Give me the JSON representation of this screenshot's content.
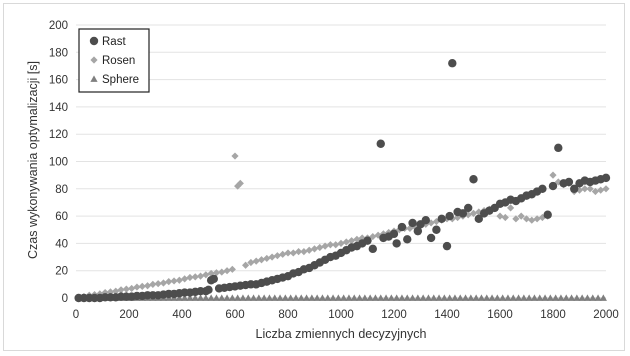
{
  "chart_data": {
    "type": "scatter",
    "xlabel": "Liczba zmiennych decyzyjnych",
    "ylabel": "Czas wykonywania optymalizacji [s]",
    "xlim": [
      0,
      2000
    ],
    "ylim": [
      0,
      200
    ],
    "x_ticks": [
      "0",
      "200",
      "400",
      "600",
      "800",
      "1000",
      "1200",
      "1400",
      "1600",
      "1800",
      "2000"
    ],
    "y_ticks": [
      "0",
      "20",
      "40",
      "60",
      "80",
      "100",
      "120",
      "140",
      "160",
      "180",
      "200"
    ],
    "grid": "horizontal",
    "legend": {
      "placement": "top-left",
      "box": true
    },
    "series": [
      {
        "name": "Rast",
        "marker": "circle",
        "color": "#4d4d4d",
        "x": [
          10,
          30,
          50,
          70,
          90,
          110,
          130,
          150,
          170,
          190,
          210,
          230,
          250,
          270,
          290,
          310,
          330,
          350,
          370,
          390,
          410,
          430,
          450,
          470,
          490,
          500,
          510,
          520,
          540,
          560,
          580,
          600,
          620,
          640,
          660,
          680,
          700,
          720,
          740,
          760,
          780,
          800,
          820,
          840,
          860,
          880,
          900,
          920,
          940,
          960,
          980,
          1000,
          1020,
          1040,
          1060,
          1080,
          1100,
          1150,
          1120,
          1160,
          1180,
          1200,
          1210,
          1230,
          1250,
          1270,
          1290,
          1300,
          1320,
          1340,
          1360,
          1380,
          1400,
          1410,
          1420,
          1440,
          1460,
          1480,
          1500,
          1520,
          1540,
          1560,
          1580,
          1600,
          1620,
          1640,
          1660,
          1680,
          1700,
          1720,
          1740,
          1760,
          1780,
          1800,
          1820,
          1840,
          1860,
          1880,
          1900,
          1920,
          1940,
          1960,
          1980,
          2000
        ],
        "y": [
          0,
          0,
          0,
          0,
          0,
          0.5,
          0.5,
          0.5,
          1,
          1,
          1,
          1.5,
          1.5,
          2,
          2,
          2,
          2.5,
          3,
          3,
          3.5,
          4,
          4,
          4.5,
          5,
          5,
          6,
          13,
          14,
          7,
          7.5,
          8,
          8.5,
          9,
          9.5,
          10,
          10,
          11,
          12,
          13,
          14,
          15,
          16,
          18,
          19,
          21,
          22,
          24,
          26,
          28,
          30,
          31,
          33,
          35,
          37,
          38,
          40,
          42,
          113,
          36,
          44,
          45,
          47,
          40,
          52,
          43,
          55,
          49,
          54,
          57,
          44,
          50,
          58,
          38,
          60,
          172,
          63,
          62,
          66,
          87,
          58,
          62,
          64,
          66,
          69,
          70,
          72,
          71,
          73,
          75,
          76,
          78,
          80,
          61,
          82,
          110,
          84,
          85,
          80,
          84,
          86,
          85,
          86,
          87,
          88
        ]
      },
      {
        "name": "Rosen",
        "marker": "diamond",
        "color": "#a6a6a6",
        "x": [
          10,
          30,
          50,
          70,
          90,
          110,
          130,
          150,
          170,
          190,
          210,
          230,
          250,
          270,
          290,
          310,
          330,
          350,
          370,
          390,
          410,
          430,
          450,
          470,
          490,
          510,
          530,
          550,
          570,
          590,
          600,
          610,
          620,
          640,
          660,
          680,
          700,
          720,
          740,
          760,
          780,
          800,
          820,
          840,
          860,
          880,
          900,
          920,
          940,
          960,
          980,
          1000,
          1020,
          1040,
          1060,
          1080,
          1100,
          1120,
          1140,
          1160,
          1180,
          1200,
          1220,
          1240,
          1260,
          1280,
          1300,
          1320,
          1340,
          1360,
          1380,
          1400,
          1420,
          1440,
          1460,
          1480,
          1500,
          1520,
          1540,
          1560,
          1580,
          1600,
          1620,
          1640,
          1660,
          1680,
          1700,
          1720,
          1740,
          1760,
          1780,
          1800,
          1820,
          1840,
          1860,
          1880,
          1900,
          1920,
          1940,
          1960,
          1980,
          2000
        ],
        "y": [
          0.5,
          1,
          2,
          2.5,
          3,
          4,
          4.5,
          5,
          6,
          6.5,
          7,
          8,
          8.5,
          9,
          10,
          10.5,
          11,
          12,
          12.5,
          13,
          14,
          15,
          15.5,
          16,
          17,
          18,
          18.5,
          19,
          20,
          21,
          104,
          82,
          84,
          24,
          26,
          27,
          28,
          29,
          30,
          31,
          32,
          33,
          33,
          34,
          34,
          35,
          36,
          37,
          38,
          39,
          39,
          40,
          41,
          42,
          43,
          44,
          44,
          45,
          46,
          47,
          48,
          49,
          50,
          51,
          51,
          52,
          53,
          54,
          55,
          56,
          57,
          58,
          58,
          59,
          60,
          61,
          62,
          63,
          64,
          65,
          66,
          60,
          59,
          66,
          58,
          60,
          58,
          57,
          58,
          59,
          60,
          90,
          85,
          83,
          84,
          78,
          79,
          80,
          80,
          78,
          79,
          80
        ]
      },
      {
        "name": "Sphere",
        "marker": "triangle",
        "color": "#7f7f7f",
        "x": [
          10,
          30,
          50,
          70,
          90,
          110,
          130,
          150,
          170,
          190,
          210,
          230,
          250,
          270,
          290,
          310,
          330,
          350,
          370,
          390,
          410,
          430,
          450,
          470,
          490,
          510,
          530,
          550,
          570,
          590,
          610,
          630,
          650,
          670,
          690,
          710,
          730,
          750,
          770,
          790,
          810,
          830,
          850,
          870,
          890,
          910,
          930,
          950,
          970,
          990,
          1010,
          1030,
          1050,
          1070,
          1090,
          1110,
          1130,
          1150,
          1170,
          1190,
          1210,
          1230,
          1250,
          1270,
          1290,
          1310,
          1330,
          1350,
          1370,
          1390,
          1410,
          1430,
          1450,
          1470,
          1490,
          1510,
          1530,
          1550,
          1570,
          1590,
          1610,
          1630,
          1650,
          1670,
          1690,
          1710,
          1730,
          1750,
          1770,
          1790,
          1810,
          1830,
          1850,
          1870,
          1890,
          1910,
          1930,
          1950,
          1970,
          1990
        ],
        "y": [
          0,
          0,
          0,
          0,
          0,
          0,
          0,
          0,
          0,
          0,
          0,
          0,
          0,
          0,
          0,
          0,
          0,
          0,
          0,
          0,
          0,
          0,
          0,
          0,
          0,
          0,
          0,
          0,
          0,
          0,
          0,
          0,
          0,
          0,
          0,
          0,
          0,
          0,
          0,
          0,
          0,
          0,
          0,
          0,
          0,
          0,
          0,
          0,
          0,
          0,
          0,
          0,
          0,
          0,
          0,
          0,
          0,
          0,
          0,
          0,
          0,
          0,
          0,
          0,
          0,
          0,
          0,
          0,
          0,
          0,
          0,
          0,
          0,
          0,
          0,
          0,
          0,
          0,
          0,
          0,
          0,
          0,
          0,
          0,
          0,
          0,
          0,
          0,
          0,
          0,
          0,
          0,
          0,
          0,
          0,
          0,
          0,
          0,
          0,
          0
        ]
      }
    ]
  }
}
